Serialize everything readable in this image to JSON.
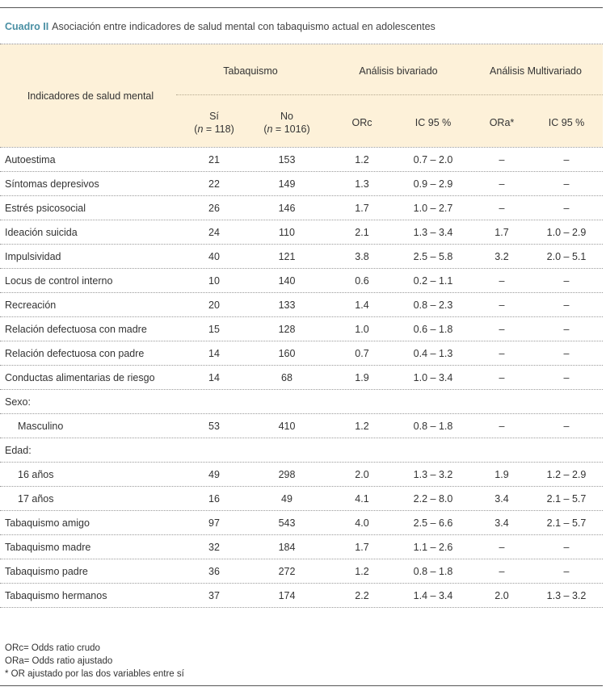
{
  "caption": {
    "label": "Cuadro II",
    "title": "Asociación entre indicadores de salud mental con tabaquismo actual en adolescentes"
  },
  "header": {
    "indicators": "Indicadores de salud mental",
    "tabaquismo": "Tabaquismo",
    "bivariado": "Análisis bivariado",
    "multivariado": "Análisis Multivariado",
    "si_label": "Sí",
    "si_n": "(n = 118)",
    "no_label": "No",
    "no_n": "(n = 1016)",
    "orc": "ORc",
    "ic95": "IC 95 %",
    "ora": "ORa*",
    "ic95_2": "IC 95 %"
  },
  "rows": [
    {
      "label": "Autoestima",
      "si": "21",
      "no": "153",
      "orc": "1.2",
      "ic": "0.7 – 2.0",
      "ora": "–",
      "ic2": "–"
    },
    {
      "label": "Síntomas depresivos",
      "si": "22",
      "no": "149",
      "orc": "1.3",
      "ic": "0.9 – 2.9",
      "ora": "–",
      "ic2": "–"
    },
    {
      "label": "Estrés psicosocial",
      "si": "26",
      "no": "146",
      "orc": "1.7",
      "ic": "1.0 – 2.7",
      "ora": "–",
      "ic2": "–"
    },
    {
      "label": "Ideación suicida",
      "si": "24",
      "no": "110",
      "orc": "2.1",
      "ic": "1.3 – 3.4",
      "ora": "1.7",
      "ic2": "1.0 – 2.9"
    },
    {
      "label": "Impulsividad",
      "si": "40",
      "no": "121",
      "orc": "3.8",
      "ic": "2.5 – 5.8",
      "ora": "3.2",
      "ic2": "2.0 – 5.1"
    },
    {
      "label": "Locus de control interno",
      "si": "10",
      "no": "140",
      "orc": "0.6",
      "ic": "0.2 – 1.1",
      "ora": "–",
      "ic2": "–"
    },
    {
      "label": "Recreación",
      "si": "20",
      "no": "133",
      "orc": "1.4",
      "ic": "0.8 – 2.3",
      "ora": "–",
      "ic2": "–"
    },
    {
      "label": "Relación defectuosa con madre",
      "si": "15",
      "no": "128",
      "orc": "1.0",
      "ic": "0.6 – 1.8",
      "ora": "–",
      "ic2": "–"
    },
    {
      "label": "Relación defectuosa con padre",
      "si": "14",
      "no": "160",
      "orc": "0.7",
      "ic": "0.4 – 1.3",
      "ora": "–",
      "ic2": "–"
    },
    {
      "label": "Conductas alimentarias de riesgo",
      "si": "14",
      "no": "68",
      "orc": "1.9",
      "ic": "1.0 – 3.4",
      "ora": "–",
      "ic2": "–"
    },
    {
      "label": "Sexo:",
      "si": "",
      "no": "",
      "orc": "",
      "ic": "",
      "ora": "",
      "ic2": ""
    },
    {
      "label": "Masculino",
      "indent": true,
      "si": "53",
      "no": "410",
      "orc": "1.2",
      "ic": "0.8 – 1.8",
      "ora": "–",
      "ic2": "–"
    },
    {
      "label": "Edad:",
      "si": "",
      "no": "",
      "orc": "",
      "ic": "",
      "ora": "",
      "ic2": ""
    },
    {
      "label": "16 años",
      "indent": true,
      "si": "49",
      "no": "298",
      "orc": "2.0",
      "ic": "1.3 – 3.2",
      "ora": "1.9",
      "ic2": "1.2 – 2.9"
    },
    {
      "label": "17 años",
      "indent": true,
      "si": "16",
      "no": "49",
      "orc": "4.1",
      "ic": "2.2 – 8.0",
      "ora": "3.4",
      "ic2": "2.1 – 5.7"
    },
    {
      "label": "Tabaquismo amigo",
      "si": "97",
      "no": "543",
      "orc": "4.0",
      "ic": "2.5 – 6.6",
      "ora": "3.4",
      "ic2": "2.1 – 5.7"
    },
    {
      "label": "Tabaquismo madre",
      "si": "32",
      "no": "184",
      "orc": "1.7",
      "ic": "1.1 – 2.6",
      "ora": "–",
      "ic2": "–"
    },
    {
      "label": "Tabaquismo padre",
      "si": "36",
      "no": "272",
      "orc": "1.2",
      "ic": "0.8 – 1.8",
      "ora": "–",
      "ic2": "–"
    },
    {
      "label": "Tabaquismo hermanos",
      "si": "37",
      "no": "174",
      "orc": "2.2",
      "ic": "1.4 – 3.4",
      "ora": "2.0",
      "ic2": "1.3 – 3.2"
    }
  ],
  "notes": [
    "ORc= Odds ratio crudo",
    "ORa= Odds ratio ajustado",
    "* OR ajustado por las dos variables entre sí"
  ],
  "colors": {
    "header_bg": "#fdf1d9",
    "caption_label": "#4a90a4",
    "text": "#333333"
  }
}
